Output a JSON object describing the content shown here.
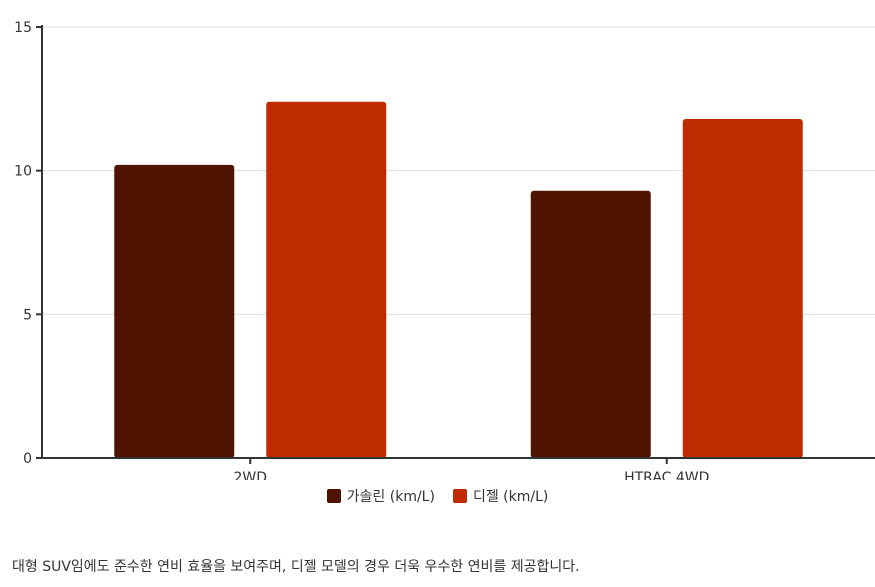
{
  "chart_data": {
    "type": "bar",
    "categories": [
      "2WD",
      "HTRAC 4WD"
    ],
    "series": [
      {
        "name": "가솔린 (km/L)",
        "values": [
          10.2,
          9.3
        ],
        "color": "#4f1400"
      },
      {
        "name": "디젤 (km/L)",
        "values": [
          12.4,
          11.8
        ],
        "color": "#bf2b00"
      }
    ],
    "ylim": [
      0,
      15
    ],
    "yticks": [
      0,
      5,
      10,
      15
    ],
    "grid": true,
    "legend": "bottom-center"
  },
  "caption": "대형 SUV임에도 준수한 연비 효율을 보여주며, 디젤 모델의 경우 더욱 우수한 연비를 제공합니다."
}
